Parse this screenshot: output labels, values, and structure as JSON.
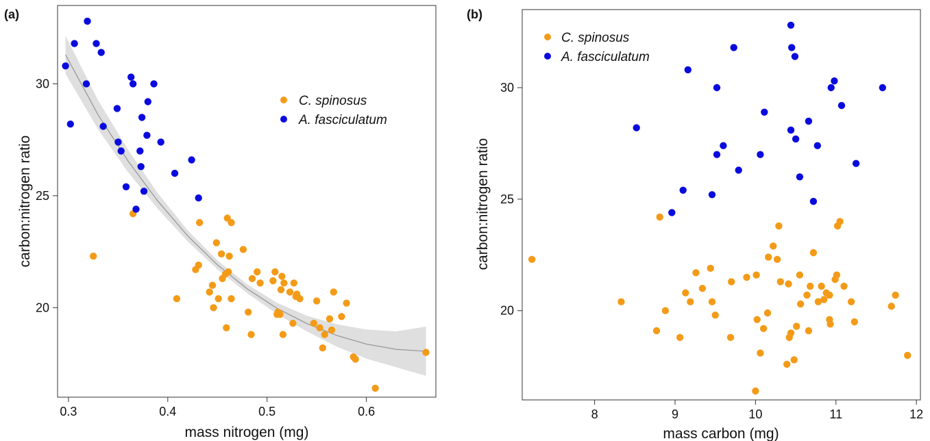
{
  "colors": {
    "c_spinosus": "#f39b18",
    "a_fasciculatum": "#0a0adf",
    "band": "#dcdcdc",
    "fit_line": "#999999"
  },
  "chart_data": [
    {
      "type": "scatter",
      "panel_label": "(a)",
      "xlabel": "mass nitrogen (mg)",
      "ylabel": "carbon:nitrogen ratio",
      "xlim": [
        0.289,
        0.67
      ],
      "ylim": [
        16.0,
        33.5
      ],
      "xticks": [
        0.3,
        0.4,
        0.5,
        0.6
      ],
      "xtick_labels": [
        "0.3",
        "0.4",
        "0.5",
        "0.6"
      ],
      "yticks": [
        20,
        25,
        30
      ],
      "ytick_labels": [
        "20",
        "25",
        "30"
      ],
      "grid": false,
      "legend": {
        "position": "top-right",
        "entries": [
          "C. spinosus",
          "A. fasciculatum"
        ]
      },
      "series": [
        {
          "name": "C. spinosus",
          "color_key": "c_spinosus",
          "points": [
            [
              0.325,
              22.3
            ],
            [
              0.365,
              24.2
            ],
            [
              0.409,
              20.4
            ],
            [
              0.428,
              21.7
            ],
            [
              0.431,
              21.9
            ],
            [
              0.432,
              23.8
            ],
            [
              0.442,
              20.7
            ],
            [
              0.445,
              21.0
            ],
            [
              0.446,
              20.0
            ],
            [
              0.449,
              22.9
            ],
            [
              0.451,
              20.4
            ],
            [
              0.454,
              22.4
            ],
            [
              0.455,
              21.3
            ],
            [
              0.458,
              21.5
            ],
            [
              0.459,
              19.1
            ],
            [
              0.46,
              24.0
            ],
            [
              0.461,
              21.6
            ],
            [
              0.462,
              22.3
            ],
            [
              0.464,
              20.4
            ],
            [
              0.464,
              23.8
            ],
            [
              0.476,
              22.6
            ],
            [
              0.481,
              19.8
            ],
            [
              0.484,
              18.8
            ],
            [
              0.485,
              21.3
            ],
            [
              0.49,
              21.6
            ],
            [
              0.493,
              21.1
            ],
            [
              0.506,
              21.2
            ],
            [
              0.508,
              21.6
            ],
            [
              0.51,
              19.7
            ],
            [
              0.511,
              19.8
            ],
            [
              0.513,
              19.7
            ],
            [
              0.514,
              20.8
            ],
            [
              0.515,
              21.4
            ],
            [
              0.516,
              18.8
            ],
            [
              0.517,
              21.1
            ],
            [
              0.523,
              20.7
            ],
            [
              0.526,
              19.3
            ],
            [
              0.527,
              21.1
            ],
            [
              0.529,
              20.5
            ],
            [
              0.53,
              20.6
            ],
            [
              0.533,
              20.4
            ],
            [
              0.547,
              19.3
            ],
            [
              0.55,
              20.3
            ],
            [
              0.553,
              19.1
            ],
            [
              0.556,
              18.2
            ],
            [
              0.558,
              18.8
            ],
            [
              0.563,
              19.5
            ],
            [
              0.565,
              19.0
            ],
            [
              0.567,
              20.7
            ],
            [
              0.575,
              19.6
            ],
            [
              0.58,
              20.2
            ],
            [
              0.587,
              17.8
            ],
            [
              0.589,
              17.7
            ],
            [
              0.609,
              16.4
            ],
            [
              0.66,
              18.0
            ]
          ]
        },
        {
          "name": "A. fasciculatum",
          "color_key": "a_fasciculatum",
          "points": [
            [
              0.297,
              30.8
            ],
            [
              0.302,
              28.2
            ],
            [
              0.306,
              31.8
            ],
            [
              0.318,
              30.0
            ],
            [
              0.319,
              32.8
            ],
            [
              0.328,
              31.8
            ],
            [
              0.333,
              31.4
            ],
            [
              0.335,
              28.1
            ],
            [
              0.349,
              28.9
            ],
            [
              0.35,
              27.4
            ],
            [
              0.353,
              27.0
            ],
            [
              0.358,
              25.4
            ],
            [
              0.363,
              30.3
            ],
            [
              0.365,
              30.0
            ],
            [
              0.368,
              24.4
            ],
            [
              0.372,
              27.0
            ],
            [
              0.373,
              26.3
            ],
            [
              0.374,
              28.5
            ],
            [
              0.376,
              25.2
            ],
            [
              0.379,
              27.7
            ],
            [
              0.38,
              29.2
            ],
            [
              0.386,
              30.0
            ],
            [
              0.393,
              27.4
            ],
            [
              0.407,
              26.0
            ],
            [
              0.424,
              26.6
            ],
            [
              0.431,
              24.9
            ]
          ]
        }
      ],
      "fit": {
        "type": "quadratic",
        "x": [
          0.297,
          0.33,
          0.36,
          0.39,
          0.42,
          0.45,
          0.48,
          0.51,
          0.54,
          0.57,
          0.6,
          0.63,
          0.66
        ],
        "y": [
          31.3,
          28.6,
          26.55,
          24.76,
          23.21,
          21.91,
          20.84,
          19.97,
          19.29,
          18.76,
          18.37,
          18.14,
          18.05
        ],
        "lower": [
          30.45,
          27.95,
          26.05,
          24.41,
          22.96,
          21.71,
          20.64,
          19.72,
          18.94,
          18.26,
          17.72,
          17.34,
          16.95
        ],
        "upper": [
          32.15,
          29.25,
          27.05,
          25.11,
          23.46,
          22.11,
          21.04,
          20.22,
          19.64,
          19.26,
          19.02,
          18.94,
          19.15
        ]
      }
    },
    {
      "type": "scatter",
      "panel_label": "(b)",
      "xlabel": "mass carbon (mg)",
      "ylabel": "carbon:nitrogen ratio",
      "xlim": [
        7.1,
        12.05
      ],
      "ylim": [
        16.0,
        33.5
      ],
      "xticks": [
        8,
        9,
        10,
        11,
        12
      ],
      "xtick_labels": [
        "8",
        "9",
        "10",
        "11",
        "12"
      ],
      "yticks": [
        20,
        25,
        30
      ],
      "ytick_labels": [
        "20",
        "25",
        "30"
      ],
      "grid": false,
      "legend": {
        "position": "top-left",
        "entries": [
          "C. spinosus",
          "A. fasciculatum"
        ]
      },
      "series": [
        {
          "name": "C. spinosus",
          "color_key": "c_spinosus",
          "points": [
            [
              7.22,
              22.3
            ],
            [
              8.33,
              20.4
            ],
            [
              8.77,
              19.1
            ],
            [
              8.81,
              24.2
            ],
            [
              8.88,
              20.0
            ],
            [
              9.06,
              18.8
            ],
            [
              9.13,
              20.8
            ],
            [
              9.19,
              20.4
            ],
            [
              9.26,
              21.7
            ],
            [
              9.34,
              21.0
            ],
            [
              9.44,
              21.9
            ],
            [
              9.46,
              20.4
            ],
            [
              9.5,
              19.8
            ],
            [
              9.69,
              18.8
            ],
            [
              9.7,
              21.3
            ],
            [
              9.89,
              21.5
            ],
            [
              10.0,
              16.4
            ],
            [
              10.01,
              21.6
            ],
            [
              10.02,
              19.6
            ],
            [
              10.06,
              18.1
            ],
            [
              10.1,
              19.2
            ],
            [
              10.15,
              19.9
            ],
            [
              10.16,
              22.4
            ],
            [
              10.22,
              22.9
            ],
            [
              10.27,
              22.3
            ],
            [
              10.29,
              23.8
            ],
            [
              10.31,
              21.3
            ],
            [
              10.39,
              17.6
            ],
            [
              10.41,
              21.2
            ],
            [
              10.42,
              18.8
            ],
            [
              10.44,
              19.0
            ],
            [
              10.48,
              17.8
            ],
            [
              10.51,
              19.3
            ],
            [
              10.56,
              20.3
            ],
            [
              10.55,
              21.6
            ],
            [
              10.64,
              20.7
            ],
            [
              10.66,
              19.1
            ],
            [
              10.68,
              21.1
            ],
            [
              10.72,
              22.6
            ],
            [
              10.78,
              20.4
            ],
            [
              10.82,
              21.1
            ],
            [
              10.85,
              20.5
            ],
            [
              10.88,
              20.8
            ],
            [
              10.92,
              20.7
            ],
            [
              10.92,
              19.6
            ],
            [
              10.93,
              19.4
            ],
            [
              10.99,
              21.4
            ],
            [
              11.01,
              21.6
            ],
            [
              11.02,
              23.8
            ],
            [
              11.05,
              24.0
            ],
            [
              11.1,
              21.1
            ],
            [
              11.19,
              20.4
            ],
            [
              11.23,
              19.5
            ],
            [
              11.69,
              20.2
            ],
            [
              11.74,
              20.7
            ],
            [
              11.89,
              18.0
            ]
          ]
        },
        {
          "name": "A. fasciculatum",
          "color_key": "a_fasciculatum",
          "points": [
            [
              8.52,
              28.2
            ],
            [
              8.96,
              24.4
            ],
            [
              9.1,
              25.4
            ],
            [
              9.16,
              30.8
            ],
            [
              9.46,
              25.2
            ],
            [
              9.52,
              27.0
            ],
            [
              9.52,
              30.0
            ],
            [
              9.6,
              27.4
            ],
            [
              9.73,
              31.8
            ],
            [
              9.79,
              26.3
            ],
            [
              10.06,
              27.0
            ],
            [
              10.11,
              28.9
            ],
            [
              10.44,
              28.1
            ],
            [
              10.44,
              32.8
            ],
            [
              10.45,
              31.8
            ],
            [
              10.49,
              31.4
            ],
            [
              10.5,
              27.7
            ],
            [
              10.55,
              26.0
            ],
            [
              10.66,
              28.5
            ],
            [
              10.72,
              24.9
            ],
            [
              10.77,
              27.4
            ],
            [
              10.94,
              30.0
            ],
            [
              10.98,
              30.3
            ],
            [
              11.07,
              29.2
            ],
            [
              11.25,
              26.6
            ],
            [
              11.58,
              30.0
            ]
          ]
        }
      ]
    }
  ]
}
